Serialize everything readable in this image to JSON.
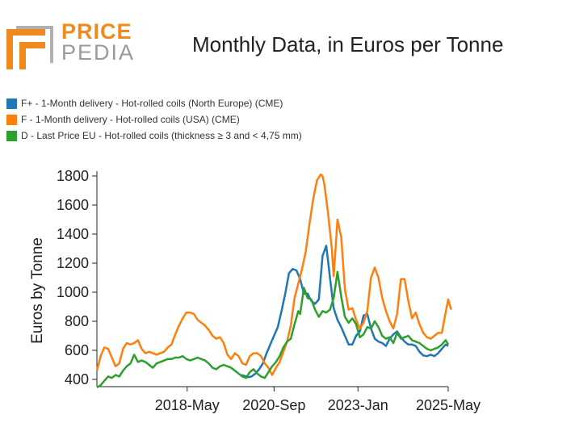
{
  "logo": {
    "line1": "PRICE",
    "line2": "PEDIA"
  },
  "chart_data": {
    "type": "line",
    "title": "Monthly Data, in Euros per Tonne",
    "xlabel": "",
    "ylabel": "Euros by Tonne",
    "ylim": [
      400,
      1800
    ],
    "yticks": [
      400,
      600,
      800,
      1000,
      1200,
      1400,
      1600,
      1800
    ],
    "xlim": [
      2016.0,
      2025.42
    ],
    "xticks": [
      {
        "value": 2018.42,
        "label": "2018-May"
      },
      {
        "value": 2020.75,
        "label": "2020-Sep"
      },
      {
        "value": 2023.0,
        "label": "2023-Jan"
      },
      {
        "value": 2025.42,
        "label": "2025-May"
      }
    ],
    "legend_position": "top-left",
    "series": [
      {
        "name": "F+ - 1-Month delivery - Hot-rolled coils (North Europe) (CME)",
        "color": "#1f77b4",
        "points": [
          [
            2019.85,
            430
          ],
          [
            2019.95,
            425
          ],
          [
            2020.05,
            415
          ],
          [
            2020.15,
            420
          ],
          [
            2020.25,
            440
          ],
          [
            2020.35,
            470
          ],
          [
            2020.45,
            510
          ],
          [
            2020.55,
            580
          ],
          [
            2020.65,
            640
          ],
          [
            2020.75,
            700
          ],
          [
            2020.85,
            760
          ],
          [
            2020.95,
            870
          ],
          [
            2021.05,
            990
          ],
          [
            2021.15,
            1130
          ],
          [
            2021.25,
            1160
          ],
          [
            2021.35,
            1150
          ],
          [
            2021.45,
            1090
          ],
          [
            2021.55,
            990
          ],
          [
            2021.65,
            990
          ],
          [
            2021.75,
            940
          ],
          [
            2021.85,
            920
          ],
          [
            2021.95,
            950
          ],
          [
            2022.05,
            1250
          ],
          [
            2022.15,
            1320
          ],
          [
            2022.25,
            1100
          ],
          [
            2022.35,
            890
          ],
          [
            2022.45,
            810
          ],
          [
            2022.55,
            760
          ],
          [
            2022.65,
            700
          ],
          [
            2022.75,
            640
          ],
          [
            2022.85,
            640
          ],
          [
            2022.95,
            700
          ],
          [
            2023.05,
            730
          ],
          [
            2023.15,
            840
          ],
          [
            2023.25,
            850
          ],
          [
            2023.35,
            750
          ],
          [
            2023.45,
            680
          ],
          [
            2023.55,
            660
          ],
          [
            2023.65,
            650
          ],
          [
            2023.75,
            630
          ],
          [
            2023.85,
            680
          ],
          [
            2023.95,
            710
          ],
          [
            2024.05,
            730
          ],
          [
            2024.15,
            690
          ],
          [
            2024.25,
            660
          ],
          [
            2024.35,
            640
          ],
          [
            2024.45,
            640
          ],
          [
            2024.55,
            630
          ],
          [
            2024.65,
            590
          ],
          [
            2024.75,
            565
          ],
          [
            2024.85,
            560
          ],
          [
            2024.95,
            570
          ],
          [
            2025.05,
            560
          ],
          [
            2025.15,
            580
          ],
          [
            2025.25,
            610
          ],
          [
            2025.35,
            640
          ],
          [
            2025.42,
            630
          ]
        ]
      },
      {
        "name": "F - 1-Month delivery - Hot-rolled coils (USA) (CME)",
        "color": "#ff7f0e",
        "points": [
          [
            2016.0,
            460
          ],
          [
            2016.1,
            560
          ],
          [
            2016.2,
            620
          ],
          [
            2016.3,
            610
          ],
          [
            2016.4,
            550
          ],
          [
            2016.5,
            490
          ],
          [
            2016.6,
            510
          ],
          [
            2016.7,
            610
          ],
          [
            2016.8,
            650
          ],
          [
            2016.9,
            640
          ],
          [
            2017.0,
            650
          ],
          [
            2017.1,
            670
          ],
          [
            2017.2,
            610
          ],
          [
            2017.3,
            580
          ],
          [
            2017.4,
            590
          ],
          [
            2017.5,
            580
          ],
          [
            2017.6,
            570
          ],
          [
            2017.7,
            580
          ],
          [
            2017.8,
            590
          ],
          [
            2017.9,
            620
          ],
          [
            2018.0,
            640
          ],
          [
            2018.1,
            710
          ],
          [
            2018.2,
            770
          ],
          [
            2018.3,
            820
          ],
          [
            2018.4,
            860
          ],
          [
            2018.5,
            860
          ],
          [
            2018.6,
            850
          ],
          [
            2018.7,
            810
          ],
          [
            2018.8,
            790
          ],
          [
            2018.9,
            770
          ],
          [
            2019.0,
            740
          ],
          [
            2019.1,
            700
          ],
          [
            2019.2,
            680
          ],
          [
            2019.3,
            690
          ],
          [
            2019.4,
            650
          ],
          [
            2019.5,
            570
          ],
          [
            2019.6,
            540
          ],
          [
            2019.7,
            580
          ],
          [
            2019.8,
            560
          ],
          [
            2019.9,
            510
          ],
          [
            2020.0,
            500
          ],
          [
            2020.1,
            560
          ],
          [
            2020.2,
            580
          ],
          [
            2020.3,
            580
          ],
          [
            2020.4,
            560
          ],
          [
            2020.5,
            510
          ],
          [
            2020.6,
            480
          ],
          [
            2020.7,
            430
          ],
          [
            2020.8,
            480
          ],
          [
            2020.9,
            520
          ],
          [
            2021.0,
            590
          ],
          [
            2021.1,
            660
          ],
          [
            2021.2,
            770
          ],
          [
            2021.3,
            960
          ],
          [
            2021.4,
            1060
          ],
          [
            2021.5,
            1160
          ],
          [
            2021.6,
            1280
          ],
          [
            2021.7,
            1470
          ],
          [
            2021.8,
            1640
          ],
          [
            2021.9,
            1770
          ],
          [
            2022.0,
            1810
          ],
          [
            2022.05,
            1800
          ],
          [
            2022.1,
            1740
          ],
          [
            2022.2,
            1540
          ],
          [
            2022.3,
            1300
          ],
          [
            2022.35,
            1110
          ],
          [
            2022.4,
            1300
          ],
          [
            2022.45,
            1500
          ],
          [
            2022.55,
            1380
          ],
          [
            2022.65,
            1020
          ],
          [
            2022.75,
            880
          ],
          [
            2022.85,
            890
          ],
          [
            2022.95,
            810
          ],
          [
            2023.05,
            750
          ],
          [
            2023.15,
            790
          ],
          [
            2023.25,
            870
          ],
          [
            2023.35,
            1100
          ],
          [
            2023.45,
            1170
          ],
          [
            2023.55,
            1100
          ],
          [
            2023.65,
            960
          ],
          [
            2023.75,
            870
          ],
          [
            2023.85,
            800
          ],
          [
            2023.95,
            750
          ],
          [
            2024.05,
            850
          ],
          [
            2024.15,
            1090
          ],
          [
            2024.25,
            1090
          ],
          [
            2024.35,
            940
          ],
          [
            2024.45,
            820
          ],
          [
            2024.55,
            860
          ],
          [
            2024.65,
            780
          ],
          [
            2024.75,
            720
          ],
          [
            2024.85,
            690
          ],
          [
            2024.95,
            680
          ],
          [
            2025.05,
            700
          ],
          [
            2025.15,
            720
          ],
          [
            2025.25,
            720
          ],
          [
            2025.35,
            860
          ],
          [
            2025.42,
            950
          ],
          [
            2025.5,
            880
          ]
        ]
      },
      {
        "name": "D - Last Price EU - Hot-rolled coils (thickness ≥ 3 and < 4,75 mm)",
        "color": "#2ca02c",
        "points": [
          [
            2016.0,
            345
          ],
          [
            2016.1,
            360
          ],
          [
            2016.2,
            390
          ],
          [
            2016.3,
            420
          ],
          [
            2016.4,
            410
          ],
          [
            2016.5,
            430
          ],
          [
            2016.6,
            420
          ],
          [
            2016.7,
            460
          ],
          [
            2016.8,
            490
          ],
          [
            2016.9,
            510
          ],
          [
            2017.0,
            570
          ],
          [
            2017.1,
            520
          ],
          [
            2017.2,
            530
          ],
          [
            2017.3,
            520
          ],
          [
            2017.4,
            500
          ],
          [
            2017.5,
            480
          ],
          [
            2017.6,
            510
          ],
          [
            2017.7,
            520
          ],
          [
            2017.8,
            530
          ],
          [
            2017.9,
            540
          ],
          [
            2018.0,
            540
          ],
          [
            2018.1,
            550
          ],
          [
            2018.2,
            550
          ],
          [
            2018.3,
            560
          ],
          [
            2018.4,
            540
          ],
          [
            2018.5,
            530
          ],
          [
            2018.6,
            540
          ],
          [
            2018.7,
            550
          ],
          [
            2018.8,
            540
          ],
          [
            2018.9,
            530
          ],
          [
            2019.0,
            510
          ],
          [
            2019.1,
            480
          ],
          [
            2019.2,
            470
          ],
          [
            2019.3,
            490
          ],
          [
            2019.4,
            500
          ],
          [
            2019.5,
            490
          ],
          [
            2019.6,
            480
          ],
          [
            2019.7,
            460
          ],
          [
            2019.8,
            440
          ],
          [
            2019.9,
            420
          ],
          [
            2020.0,
            410
          ],
          [
            2020.1,
            450
          ],
          [
            2020.2,
            470
          ],
          [
            2020.3,
            440
          ],
          [
            2020.4,
            420
          ],
          [
            2020.5,
            410
          ],
          [
            2020.6,
            450
          ],
          [
            2020.7,
            490
          ],
          [
            2020.8,
            520
          ],
          [
            2020.9,
            560
          ],
          [
            2021.0,
            620
          ],
          [
            2021.1,
            660
          ],
          [
            2021.2,
            680
          ],
          [
            2021.3,
            780
          ],
          [
            2021.4,
            870
          ],
          [
            2021.45,
            850
          ],
          [
            2021.55,
            1030
          ],
          [
            2021.65,
            960
          ],
          [
            2021.75,
            950
          ],
          [
            2021.85,
            880
          ],
          [
            2021.95,
            830
          ],
          [
            2022.05,
            870
          ],
          [
            2022.15,
            860
          ],
          [
            2022.25,
            880
          ],
          [
            2022.35,
            960
          ],
          [
            2022.45,
            1140
          ],
          [
            2022.55,
            970
          ],
          [
            2022.65,
            830
          ],
          [
            2022.75,
            790
          ],
          [
            2022.85,
            820
          ],
          [
            2022.95,
            780
          ],
          [
            2023.05,
            690
          ],
          [
            2023.15,
            710
          ],
          [
            2023.25,
            760
          ],
          [
            2023.35,
            750
          ],
          [
            2023.45,
            800
          ],
          [
            2023.55,
            760
          ],
          [
            2023.65,
            700
          ],
          [
            2023.75,
            680
          ],
          [
            2023.85,
            690
          ],
          [
            2023.95,
            650
          ],
          [
            2024.05,
            720
          ],
          [
            2024.15,
            680
          ],
          [
            2024.25,
            690
          ],
          [
            2024.35,
            700
          ],
          [
            2024.45,
            670
          ],
          [
            2024.55,
            660
          ],
          [
            2024.65,
            650
          ],
          [
            2024.75,
            630
          ],
          [
            2024.85,
            610
          ],
          [
            2024.95,
            600
          ],
          [
            2025.05,
            610
          ],
          [
            2025.15,
            620
          ],
          [
            2025.25,
            640
          ],
          [
            2025.35,
            670
          ],
          [
            2025.42,
            640
          ]
        ]
      }
    ]
  }
}
